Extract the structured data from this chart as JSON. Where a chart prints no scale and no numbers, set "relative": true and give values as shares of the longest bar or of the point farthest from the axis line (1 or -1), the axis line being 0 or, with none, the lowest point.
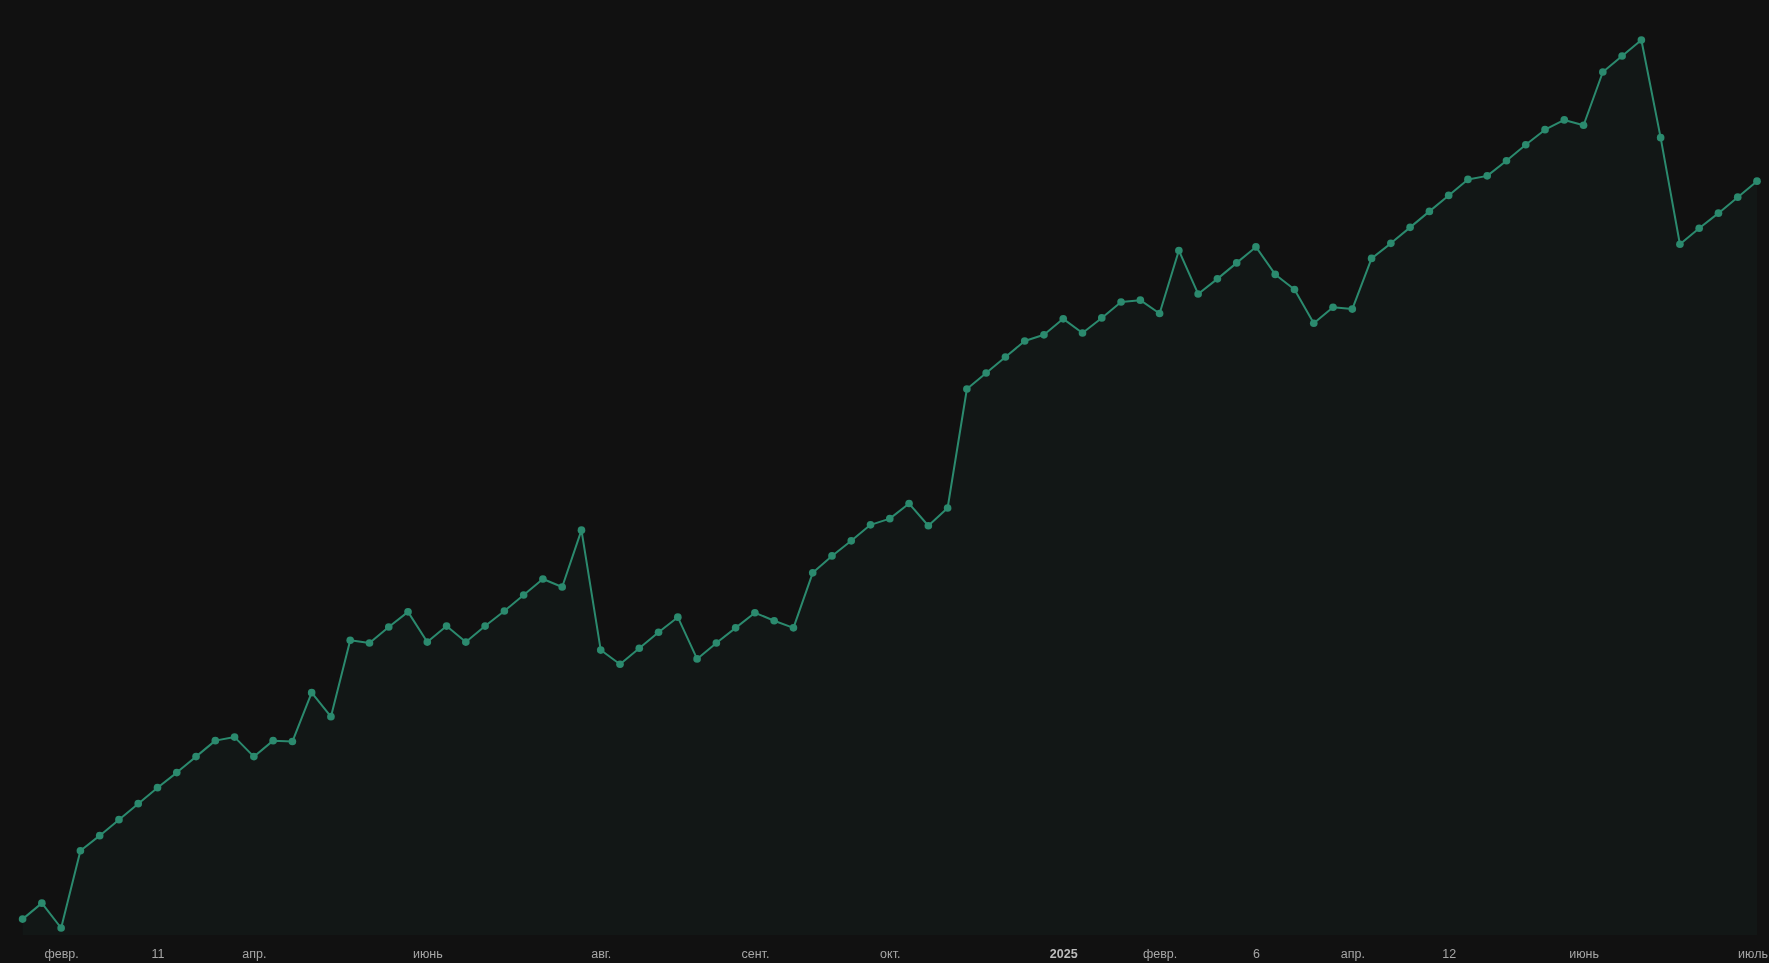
{
  "chart_data": {
    "type": "area",
    "relative": true,
    "color": "#2b8a6e",
    "marker": "circle",
    "categories": [
      null,
      null,
      "февр.",
      null,
      null,
      null,
      null,
      "11",
      null,
      null,
      null,
      null,
      "апр.",
      null,
      null,
      null,
      null,
      null,
      null,
      null,
      null,
      "июнь",
      null,
      null,
      null,
      null,
      null,
      null,
      null,
      null,
      "авг.",
      null,
      null,
      null,
      null,
      null,
      null,
      null,
      "сент.",
      null,
      null,
      null,
      null,
      null,
      null,
      "окт.",
      null,
      null,
      null,
      null,
      null,
      null,
      null,
      null,
      "2025",
      null,
      null,
      null,
      null,
      "февр.",
      null,
      null,
      null,
      null,
      "6",
      null,
      null,
      null,
      null,
      "апр.",
      null,
      null,
      null,
      null,
      "12",
      null,
      null,
      null,
      null,
      null,
      null,
      "июнь",
      null,
      null,
      null,
      null,
      null,
      null,
      null,
      null,
      "июль"
    ],
    "values": [
      0.01,
      0.028,
      0,
      0.087,
      0.104,
      0.122,
      0.14,
      0.158,
      0.175,
      0.193,
      0.211,
      0.215,
      0.193,
      0.211,
      0.21,
      0.265,
      0.238,
      0.324,
      0.321,
      0.339,
      0.356,
      0.322,
      0.34,
      0.322,
      0.34,
      0.357,
      0.375,
      0.393,
      0.384,
      0.448,
      0.313,
      0.297,
      0.315,
      0.333,
      0.35,
      0.303,
      0.321,
      0.338,
      0.355,
      0.346,
      0.338,
      0.4,
      0.419,
      0.436,
      0.454,
      0.461,
      0.478,
      0.453,
      0.473,
      0.607,
      0.625,
      0.643,
      0.661,
      0.668,
      0.686,
      0.67,
      0.687,
      0.705,
      0.707,
      0.692,
      0.763,
      0.714,
      0.731,
      0.749,
      0.767,
      0.736,
      0.719,
      0.681,
      0.699,
      0.697,
      0.754,
      0.771,
      0.789,
      0.807,
      0.825,
      0.843,
      0.847,
      0.864,
      0.882,
      0.899,
      0.91,
      0.904,
      0.964,
      0.982,
      1,
      0.89,
      0.77,
      0.788,
      0.805,
      0.823,
      0.841
    ]
  }
}
